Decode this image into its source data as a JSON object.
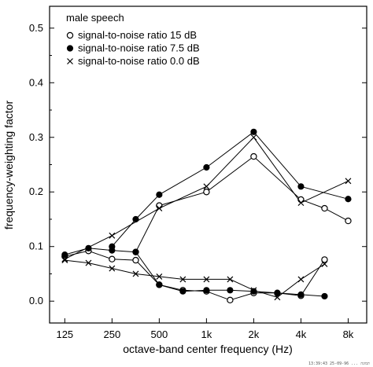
{
  "chart_data": {
    "type": "line",
    "xlabel": "octave-band center frequency (Hz)",
    "ylabel": "frequency-weighting factor",
    "x_scale": "log",
    "x_tick_labels": [
      "125",
      "250",
      "500",
      "1k",
      "2k",
      "4k",
      "8k"
    ],
    "x_tick_values": [
      125,
      250,
      500,
      1000,
      2000,
      4000,
      8000
    ],
    "y_tick_labels": [
      "0.0",
      "0.1",
      "0.2",
      "0.3",
      "0.4",
      "0.5"
    ],
    "ylim": [
      -0.04,
      0.54
    ],
    "xlim": [
      100,
      10500
    ],
    "grid": false,
    "legend_position": "top-left",
    "legend_title": "male speech",
    "stamp_text": "תמונה ... 25-09-96 13:39:43",
    "series": [
      {
        "name": "signal-to-noise ratio 15 dB",
        "marker": "open-circle",
        "segments": [
          {
            "x": [
              125,
              177,
              250,
              354,
              500,
              707,
              1000,
              1414,
              2000,
              2828,
              4000,
              5657
            ],
            "y": [
              0.082,
              0.092,
              0.077,
              0.075,
              0.03,
              0.02,
              0.018,
              0.002,
              0.015,
              0.015,
              0.01,
              0.076
            ]
          },
          {
            "x": [
              354,
              500,
              1000,
              2000,
              4000,
              5657,
              8000
            ],
            "y": [
              0.09,
              0.175,
              0.2,
              0.265,
              0.186,
              0.17,
              0.147
            ]
          }
        ]
      },
      {
        "name": "signal-to-noise ratio 7.5 dB",
        "marker": "filled-circle",
        "segments": [
          {
            "x": [
              125,
              177,
              250,
              354,
              500,
              707,
              1000,
              1414,
              2000,
              2828,
              4000,
              5657
            ],
            "y": [
              0.085,
              0.097,
              0.093,
              0.09,
              0.03,
              0.018,
              0.02,
              0.02,
              0.018,
              0.015,
              0.012,
              0.009
            ]
          },
          {
            "x": [
              250,
              354,
              500,
              1000,
              2000,
              4000,
              8000
            ],
            "y": [
              0.1,
              0.15,
              0.195,
              0.245,
              0.31,
              0.21,
              0.187
            ]
          }
        ]
      },
      {
        "name": "signal-to-noise ratio 0.0 dB",
        "marker": "cross",
        "segments": [
          {
            "x": [
              125,
              177,
              250,
              354,
              500,
              707,
              1000,
              1414,
              2000,
              2828,
              4000,
              5657
            ],
            "y": [
              0.075,
              0.07,
              0.06,
              0.05,
              0.045,
              0.04,
              0.04,
              0.04,
              0.02,
              0.007,
              0.04,
              0.068
            ]
          },
          {
            "x": [
              125,
              250,
              500,
              1000,
              2000,
              4000,
              8000
            ],
            "y": [
              0.077,
              0.12,
              0.17,
              0.21,
              0.3,
              0.18,
              0.22
            ]
          }
        ]
      }
    ]
  }
}
